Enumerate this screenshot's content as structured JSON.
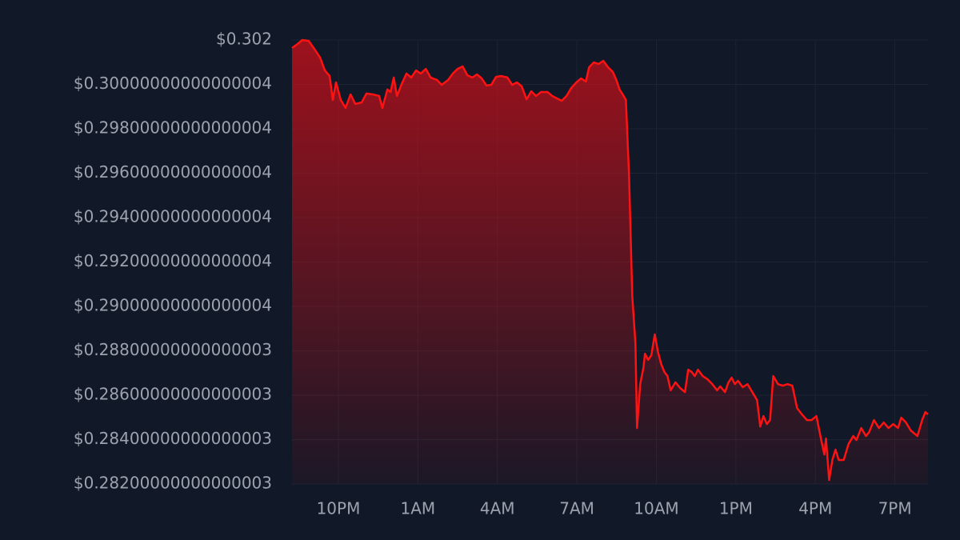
{
  "chart_data": {
    "type": "area",
    "color": "#ff1212",
    "grid": true,
    "xlim": [
      0,
      24
    ],
    "ylim": [
      0.282,
      0.302
    ],
    "xticks": [
      {
        "value": 1.75,
        "label": "10PM"
      },
      {
        "value": 4.75,
        "label": "1AM"
      },
      {
        "value": 7.75,
        "label": "4AM"
      },
      {
        "value": 10.75,
        "label": "7AM"
      },
      {
        "value": 13.75,
        "label": "10AM"
      },
      {
        "value": 16.75,
        "label": "1PM"
      },
      {
        "value": 19.75,
        "label": "4PM"
      },
      {
        "value": 22.75,
        "label": "7PM"
      }
    ],
    "yticks": [
      {
        "value": 0.282,
        "label": "$0.28200000000000003"
      },
      {
        "value": 0.284,
        "label": "$0.28400000000000003"
      },
      {
        "value": 0.286,
        "label": "$0.28600000000000003"
      },
      {
        "value": 0.288,
        "label": "$0.28800000000000003"
      },
      {
        "value": 0.29,
        "label": "$0.29000000000000004"
      },
      {
        "value": 0.292,
        "label": "$0.29200000000000004"
      },
      {
        "value": 0.294,
        "label": "$0.29400000000000004"
      },
      {
        "value": 0.296,
        "label": "$0.29600000000000004"
      },
      {
        "value": 0.298,
        "label": "$0.29800000000000004"
      },
      {
        "value": 0.3,
        "label": "$0.30000000000000004"
      },
      {
        "value": 0.302,
        "label": "$0.302"
      }
    ],
    "x": [
      0,
      0.21,
      0.39,
      0.63,
      0.82,
      1.06,
      1.24,
      1.42,
      1.54,
      1.66,
      1.84,
      2.02,
      2.21,
      2.39,
      2.63,
      2.81,
      3.05,
      3.29,
      3.41,
      3.6,
      3.72,
      3.84,
      3.96,
      4.14,
      4.32,
      4.5,
      4.68,
      4.86,
      5.05,
      5.23,
      5.47,
      5.65,
      5.89,
      6.07,
      6.25,
      6.44,
      6.62,
      6.8,
      6.98,
      7.16,
      7.34,
      7.52,
      7.7,
      7.89,
      8.13,
      8.31,
      8.49,
      8.67,
      8.85,
      9.03,
      9.21,
      9.4,
      9.64,
      9.82,
      10,
      10.18,
      10.36,
      10.54,
      10.73,
      10.91,
      11.09,
      11.21,
      11.39,
      11.57,
      11.75,
      11.93,
      12.11,
      12.24,
      12.36,
      12.48,
      12.6,
      12.72,
      12.84,
      12.96,
      13.02,
      13.14,
      13.26,
      13.32,
      13.44,
      13.56,
      13.69,
      13.81,
      13.93,
      14.05,
      14.17,
      14.29,
      14.47,
      14.65,
      14.83,
      14.95,
      15.08,
      15.2,
      15.32,
      15.5,
      15.68,
      15.86,
      16.04,
      16.16,
      16.34,
      16.47,
      16.59,
      16.71,
      16.83,
      17.01,
      17.19,
      17.37,
      17.55,
      17.67,
      17.79,
      17.92,
      18.04,
      18.16,
      18.34,
      18.52,
      18.7,
      18.88,
      19.06,
      19.24,
      19.43,
      19.61,
      19.79,
      19.97,
      20.09,
      20.15,
      20.27,
      20.39,
      20.51,
      20.63,
      20.82,
      21,
      21.18,
      21.3,
      21.48,
      21.66,
      21.78,
      21.96,
      22.15,
      22.33,
      22.51,
      22.69,
      22.87,
      22.99,
      23.17,
      23.35,
      23.6,
      23.78,
      23.9,
      24
    ],
    "values": [
      0.30164,
      0.30182,
      0.302,
      0.30196,
      0.30164,
      0.30121,
      0.30063,
      0.30038,
      0.2993,
      0.30009,
      0.2993,
      0.29894,
      0.29955,
      0.29912,
      0.29919,
      0.29959,
      0.29955,
      0.29948,
      0.29894,
      0.29977,
      0.29966,
      0.30031,
      0.29948,
      0.30002,
      0.30049,
      0.30031,
      0.30063,
      0.30049,
      0.3007,
      0.30031,
      0.3002,
      0.29998,
      0.3002,
      0.30049,
      0.3007,
      0.30081,
      0.30041,
      0.30031,
      0.30045,
      0.30027,
      0.29995,
      0.29998,
      0.30034,
      0.30038,
      0.30031,
      0.29998,
      0.30009,
      0.29991,
      0.29933,
      0.29969,
      0.29948,
      0.29966,
      0.29966,
      0.29948,
      0.29937,
      0.29926,
      0.29948,
      0.29984,
      0.30009,
      0.30027,
      0.30013,
      0.30077,
      0.30099,
      0.30092,
      0.30106,
      0.30077,
      0.30056,
      0.3002,
      0.29977,
      0.29955,
      0.2993,
      0.29587,
      0.29047,
      0.28831,
      0.28452,
      0.2865,
      0.28723,
      0.28787,
      0.28759,
      0.2878,
      0.28874,
      0.28795,
      0.28741,
      0.28705,
      0.28686,
      0.28622,
      0.28658,
      0.28632,
      0.28614,
      0.28715,
      0.28705,
      0.28686,
      0.28715,
      0.28686,
      0.28672,
      0.2865,
      0.28622,
      0.2864,
      0.28614,
      0.28658,
      0.28679,
      0.2865,
      0.28665,
      0.28636,
      0.2865,
      0.28614,
      0.28578,
      0.28459,
      0.28506,
      0.2847,
      0.28488,
      0.28686,
      0.2865,
      0.28643,
      0.2865,
      0.28643,
      0.28542,
      0.28514,
      0.28488,
      0.28488,
      0.28506,
      0.28398,
      0.28333,
      0.28405,
      0.28218,
      0.28308,
      0.28355,
      0.28308,
      0.28308,
      0.2838,
      0.28416,
      0.28398,
      0.28452,
      0.28416,
      0.28434,
      0.28488,
      0.28452,
      0.28477,
      0.28452,
      0.2847,
      0.28452,
      0.28499,
      0.28477,
      0.28441,
      0.28416,
      0.28488,
      0.28524,
      0.28514
    ]
  }
}
